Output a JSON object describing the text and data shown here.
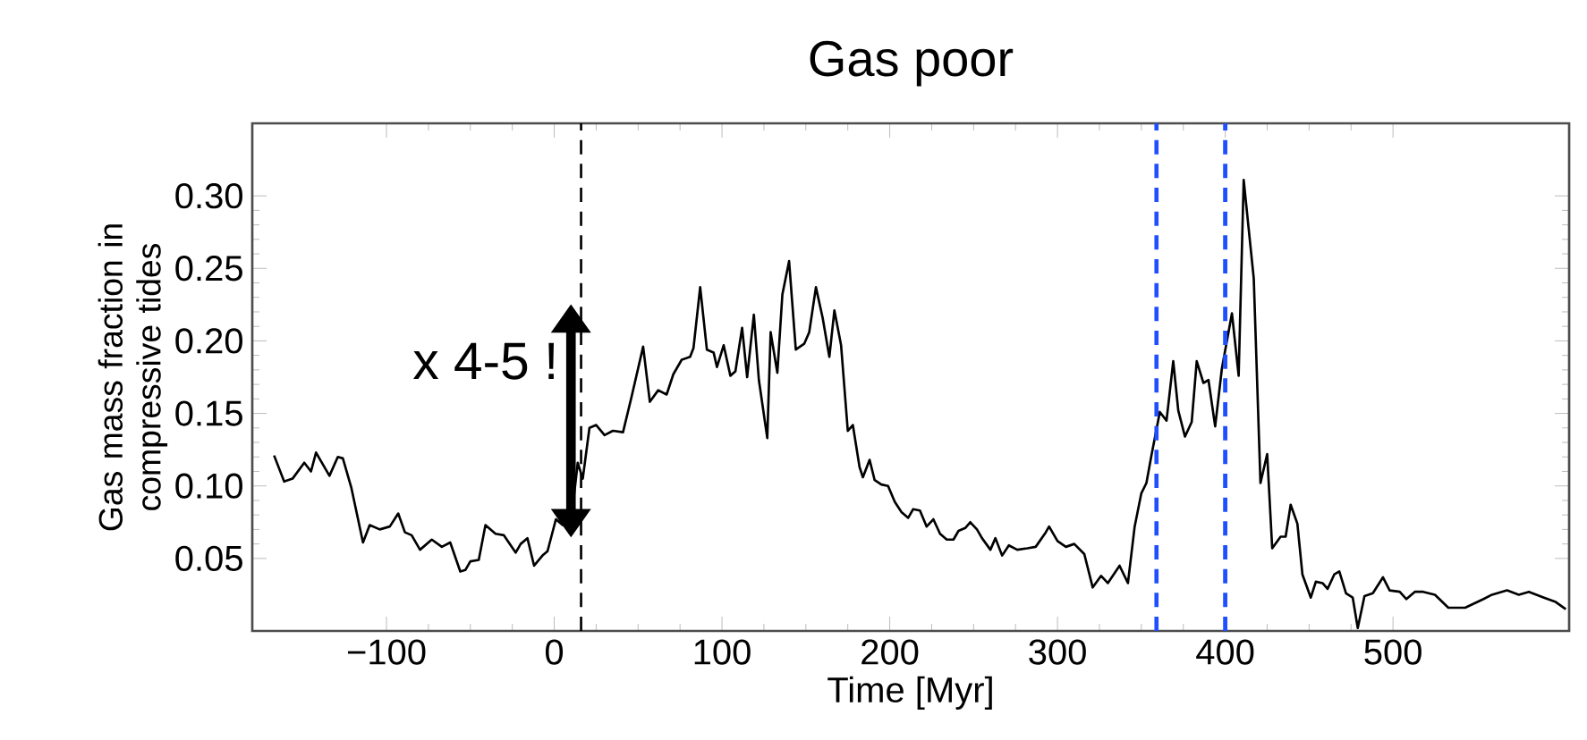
{
  "chart_data": {
    "type": "line",
    "title": "Gas poor",
    "xlabel": "Time [Myr]",
    "ylabel": "Gas mass fraction in compressive tides",
    "xlim": [
      -180,
      605
    ],
    "ylim": [
      0,
      0.35
    ],
    "xticks": [
      {
        "value": -100,
        "label": "−100"
      },
      0,
      100,
      200,
      300,
      400,
      500
    ],
    "yticks": [
      0.05,
      {
        "value": 0.1,
        "label": "0.10"
      },
      0.15,
      {
        "value": 0.2,
        "label": "0.20"
      },
      0.25,
      {
        "value": 0.3,
        "label": "0.30"
      }
    ],
    "ref_lines": [
      {
        "axis": "x",
        "value": 16,
        "color": "#000000",
        "line_style": "dashed"
      },
      {
        "axis": "x",
        "value": 359,
        "color": "#1f4fff",
        "line_style": "dashed"
      },
      {
        "axis": "x",
        "value": 400,
        "color": "#1f4fff",
        "line_style": "dashed"
      }
    ],
    "annotations": [
      "x 4-5 !"
    ],
    "series": [
      {
        "color": "#000000",
        "x": [
          -167,
          -161,
          -156,
          -149,
          -145,
          -142,
          -134,
          -129,
          -126,
          -121,
          -114,
          -110,
          -104,
          -98,
          -93,
          -89,
          -85,
          -80,
          -73,
          -67,
          -62,
          -56,
          -53,
          -50,
          -45,
          -41,
          -35,
          -30,
          -23,
          -20,
          -16,
          -12,
          -7,
          -4,
          1,
          5,
          10,
          14,
          17,
          21,
          25,
          30,
          35,
          41,
          46,
          53,
          57,
          62,
          67,
          71,
          76,
          81,
          83,
          87,
          91,
          95,
          97,
          101,
          105,
          108,
          112,
          115,
          119,
          122,
          127,
          129,
          133,
          136,
          140,
          144,
          149,
          152,
          156,
          160,
          164,
          167,
          171,
          175,
          178,
          182,
          184,
          188,
          191,
          195,
          199,
          203,
          207,
          211,
          214,
          218,
          222,
          226,
          230,
          234,
          238,
          241,
          245,
          248,
          252,
          255,
          260,
          263,
          267,
          271,
          276,
          282,
          287,
          293,
          295,
          300,
          305,
          310,
          316,
          321,
          326,
          330,
          337,
          342,
          346,
          350,
          353,
          356,
          361,
          365,
          369,
          372,
          376,
          380,
          383,
          387,
          390,
          394,
          398,
          404,
          408,
          411,
          417,
          421,
          425,
          428,
          433,
          436,
          439,
          443,
          446,
          451,
          454,
          458,
          461,
          465,
          468,
          472,
          476,
          479,
          483,
          488,
          494,
          498,
          504,
          508,
          513,
          518,
          525,
          533,
          543,
          554,
          559,
          568,
          575,
          581,
          590,
          597,
          603
        ],
        "values": [
          0.121,
          0.103,
          0.105,
          0.116,
          0.11,
          0.123,
          0.107,
          0.12,
          0.119,
          0.099,
          0.061,
          0.073,
          0.07,
          0.072,
          0.081,
          0.068,
          0.066,
          0.056,
          0.063,
          0.058,
          0.061,
          0.041,
          0.042,
          0.048,
          0.049,
          0.073,
          0.067,
          0.066,
          0.054,
          0.06,
          0.064,
          0.045,
          0.052,
          0.055,
          0.077,
          0.073,
          0.075,
          0.116,
          0.105,
          0.14,
          0.142,
          0.135,
          0.138,
          0.137,
          0.161,
          0.196,
          0.158,
          0.166,
          0.163,
          0.177,
          0.187,
          0.189,
          0.195,
          0.237,
          0.194,
          0.192,
          0.182,
          0.197,
          0.176,
          0.179,
          0.209,
          0.175,
          0.218,
          0.173,
          0.133,
          0.206,
          0.178,
          0.232,
          0.255,
          0.194,
          0.198,
          0.206,
          0.237,
          0.216,
          0.189,
          0.221,
          0.197,
          0.138,
          0.142,
          0.113,
          0.106,
          0.118,
          0.104,
          0.101,
          0.1,
          0.089,
          0.082,
          0.078,
          0.084,
          0.083,
          0.072,
          0.077,
          0.067,
          0.063,
          0.063,
          0.069,
          0.071,
          0.075,
          0.07,
          0.064,
          0.056,
          0.064,
          0.052,
          0.059,
          0.056,
          0.057,
          0.058,
          0.068,
          0.072,
          0.062,
          0.058,
          0.06,
          0.053,
          0.03,
          0.038,
          0.033,
          0.045,
          0.033,
          0.072,
          0.095,
          0.102,
          0.121,
          0.151,
          0.145,
          0.186,
          0.152,
          0.134,
          0.144,
          0.186,
          0.171,
          0.173,
          0.141,
          0.181,
          0.219,
          0.176,
          0.311,
          0.243,
          0.102,
          0.122,
          0.057,
          0.065,
          0.065,
          0.087,
          0.074,
          0.039,
          0.023,
          0.034,
          0.033,
          0.029,
          0.039,
          0.041,
          0.026,
          0.023,
          0.002,
          0.024,
          0.026,
          0.037,
          0.028,
          0.027,
          0.022,
          0.027,
          0.027,
          0.025,
          0.016,
          0.016,
          0.022,
          0.025,
          0.028,
          0.025,
          0.027,
          0.023,
          0.02,
          0.015
        ]
      }
    ]
  }
}
